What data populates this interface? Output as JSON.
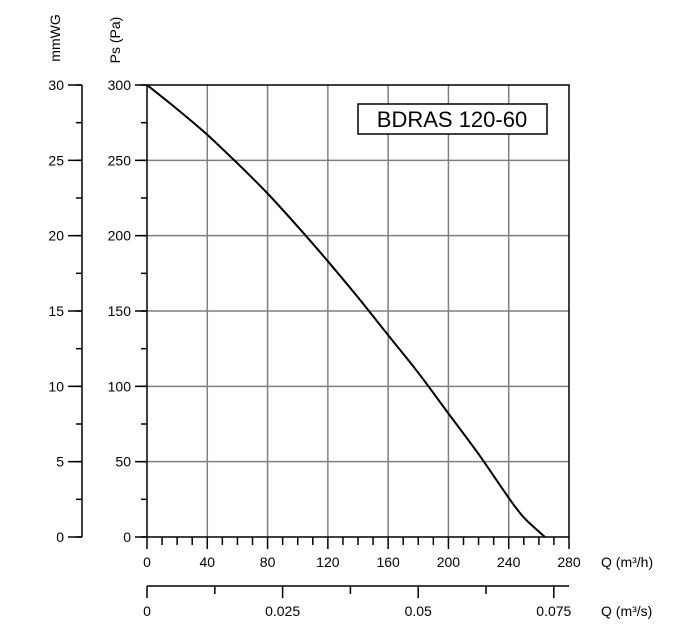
{
  "chart_data": {
    "type": "line",
    "title": "BDRAS 120-60",
    "series": [
      {
        "x": [
          0,
          20,
          40,
          60,
          80,
          100,
          120,
          140,
          160,
          180,
          200,
          220,
          240,
          250,
          264
        ],
        "y": [
          300,
          284,
          267,
          248,
          228,
          206,
          183,
          159,
          134,
          109,
          82,
          55,
          26,
          13,
          0
        ]
      }
    ],
    "xlabel": "Q (m³/h)",
    "xlim": [
      0,
      280
    ],
    "xticks": [
      "0",
      "40",
      "80",
      "120",
      "160",
      "200",
      "240",
      "280"
    ],
    "x2label": "Q (m³/s)",
    "x2lim": [
      0,
      0.0778
    ],
    "x2ticks": [
      "0",
      "0.025",
      "0.05",
      "0.075"
    ],
    "x2tick_values": [
      0,
      0.025,
      0.05,
      0.075
    ],
    "ylabel": "Ps (Pa)",
    "ylim": [
      0,
      300
    ],
    "yticks": [
      "0",
      "50",
      "100",
      "150",
      "200",
      "250",
      "300"
    ],
    "y2label": "mmWG",
    "y2lim": [
      0,
      30
    ],
    "y2ticks": [
      "0",
      "5",
      "10",
      "15",
      "20",
      "25",
      "30"
    ],
    "grid": true
  }
}
